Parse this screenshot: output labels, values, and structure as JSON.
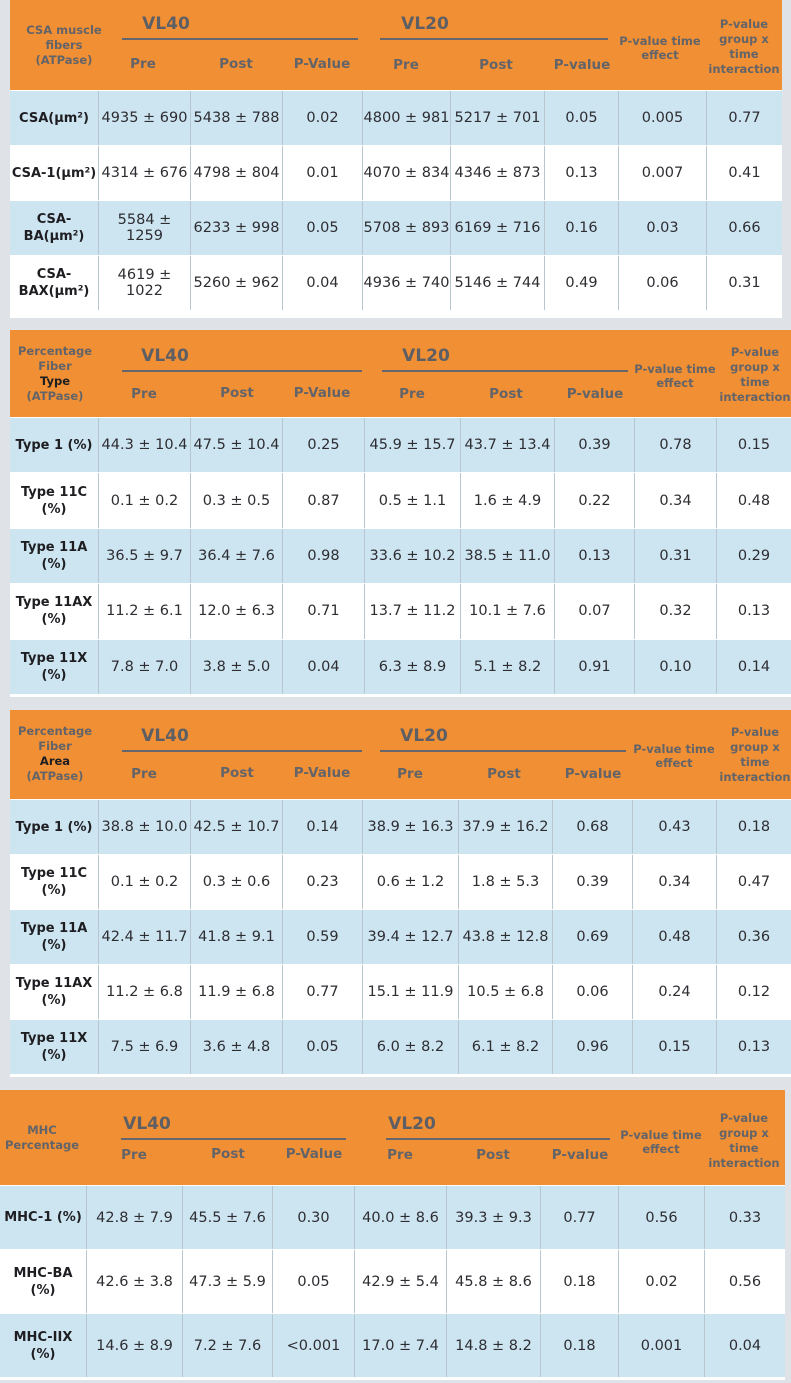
{
  "common": {
    "vl40": "VL40",
    "vl20": "VL20",
    "pre": "Pre",
    "post": "Post",
    "pvalue_vl40": "P-Value",
    "pvalue_vl20": "P-value",
    "pvalue_time": "P-value time effect",
    "pvalue_inter": "P-value group x time interaction"
  },
  "t1": {
    "corner": "CSA muscle fibers (ATPase)",
    "rows": [
      {
        "label": "CSA(µm²)",
        "vl40_pre": "4935 ± 690",
        "vl40_post": "5438 ± 788",
        "vl40_p": "0.02",
        "vl20_pre": "4800 ± 981",
        "vl20_post": "5217 ± 701",
        "vl20_p": "0.05",
        "p_time": "0.005",
        "p_inter": "0.77"
      },
      {
        "label": "CSA-1(µm²)",
        "vl40_pre": "4314 ± 676",
        "vl40_post": "4798 ± 804",
        "vl40_p": "0.01",
        "vl20_pre": "4070 ± 834",
        "vl20_post": "4346 ± 873",
        "vl20_p": "0.13",
        "p_time": "0.007",
        "p_inter": "0.41"
      },
      {
        "label": "CSA-BA(µm²)",
        "vl40_pre": "5584 ± 1259",
        "vl40_post": "6233 ± 998",
        "vl40_p": "0.05",
        "vl20_pre": "5708 ± 893",
        "vl20_post": "6169 ± 716",
        "vl20_p": "0.16",
        "p_time": "0.03",
        "p_inter": "0.66"
      },
      {
        "label": "CSA-BAX(µm²)",
        "vl40_pre": "4619 ± 1022",
        "vl40_post": "5260 ± 962",
        "vl40_p": "0.04",
        "vl20_pre": "4936 ± 740",
        "vl20_post": "5146 ± 744",
        "vl20_p": "0.49",
        "p_time": "0.06",
        "p_inter": "0.31"
      }
    ]
  },
  "t2": {
    "corner_a": "Percentage Fiber",
    "corner_b": "Type",
    "corner_c": "(ATPase)",
    "rows": [
      {
        "label": "Type 1 (%)",
        "vl40_pre": "44.3 ± 10.4",
        "vl40_post": "47.5 ± 10.4",
        "vl40_p": "0.25",
        "vl20_pre": "45.9 ± 15.7",
        "vl20_post": "43.7 ± 13.4",
        "vl20_p": "0.39",
        "p_time": "0.78",
        "p_inter": "0.15"
      },
      {
        "label": "Type 11C (%)",
        "vl40_pre": "0.1 ± 0.2",
        "vl40_post": "0.3 ± 0.5",
        "vl40_p": "0.87",
        "vl20_pre": "0.5 ± 1.1",
        "vl20_post": "1.6 ± 4.9",
        "vl20_p": "0.22",
        "p_time": "0.34",
        "p_inter": "0.48"
      },
      {
        "label": "Type 11A (%)",
        "vl40_pre": "36.5 ± 9.7",
        "vl40_post": "36.4 ± 7.6",
        "vl40_p": "0.98",
        "vl20_pre": "33.6 ± 10.2",
        "vl20_post": "38.5 ± 11.0",
        "vl20_p": "0.13",
        "p_time": "0.31",
        "p_inter": "0.29"
      },
      {
        "label": "Type 11AX (%)",
        "vl40_pre": "11.2 ± 6.1",
        "vl40_post": "12.0 ± 6.3",
        "vl40_p": "0.71",
        "vl20_pre": "13.7 ± 11.2",
        "vl20_post": "10.1 ± 7.6",
        "vl20_p": "0.07",
        "p_time": "0.32",
        "p_inter": "0.13"
      },
      {
        "label": "Type 11X (%)",
        "vl40_pre": "7.8 ± 7.0",
        "vl40_post": "3.8 ± 5.0",
        "vl40_p": "0.04",
        "vl20_pre": "6.3 ± 8.9",
        "vl20_post": "5.1 ± 8.2",
        "vl20_p": "0.91",
        "p_time": "0.10",
        "p_inter": "0.14"
      }
    ]
  },
  "t3": {
    "corner_a": "Percentage Fiber",
    "corner_b": "Area",
    "corner_c": "(ATPase)",
    "rows": [
      {
        "label": "Type 1 (%)",
        "vl40_pre": "38.8 ± 10.0",
        "vl40_post": "42.5 ± 10.7",
        "vl40_p": "0.14",
        "vl20_pre": "38.9 ± 16.3",
        "vl20_post": "37.9 ± 16.2",
        "vl20_p": "0.68",
        "p_time": "0.43",
        "p_inter": "0.18"
      },
      {
        "label": "Type 11C (%)",
        "vl40_pre": "0.1 ± 0.2",
        "vl40_post": "0.3 ± 0.6",
        "vl40_p": "0.23",
        "vl20_pre": "0.6 ± 1.2",
        "vl20_post": "1.8 ± 5.3",
        "vl20_p": "0.39",
        "p_time": "0.34",
        "p_inter": "0.47"
      },
      {
        "label": "Type 11A (%)",
        "vl40_pre": "42.4 ± 11.7",
        "vl40_post": "41.8 ± 9.1",
        "vl40_p": "0.59",
        "vl20_pre": "39.4 ± 12.7",
        "vl20_post": "43.8 ± 12.8",
        "vl20_p": "0.69",
        "p_time": "0.48",
        "p_inter": "0.36"
      },
      {
        "label": "Type 11AX (%)",
        "vl40_pre": "11.2 ± 6.8",
        "vl40_post": "11.9 ± 6.8",
        "vl40_p": "0.77",
        "vl20_pre": "15.1 ± 11.9",
        "vl20_post": "10.5 ± 6.8",
        "vl20_p": "0.06",
        "p_time": "0.24",
        "p_inter": "0.12"
      },
      {
        "label": "Type 11X (%)",
        "vl40_pre": "7.5 ± 6.9",
        "vl40_post": "3.6 ± 4.8",
        "vl40_p": "0.05",
        "vl20_pre": "6.0 ± 8.2",
        "vl20_post": "6.1 ± 8.2",
        "vl20_p": "0.96",
        "p_time": "0.15",
        "p_inter": "0.13"
      }
    ]
  },
  "t4": {
    "corner": "MHC Percentage",
    "rows": [
      {
        "label": "MHC-1 (%)",
        "vl40_pre": "42.8 ± 7.9",
        "vl40_post": "45.5 ± 7.6",
        "vl40_p": "0.30",
        "vl20_pre": "40.0 ± 8.6",
        "vl20_post": "39.3 ± 9.3",
        "vl20_p": "0.77",
        "p_time": "0.56",
        "p_inter": "0.33"
      },
      {
        "label": "MHC-BA (%)",
        "vl40_pre": "42.6 ± 3.8",
        "vl40_post": "47.3 ± 5.9",
        "vl40_p": "0.05",
        "vl20_pre": "42.9 ± 5.4",
        "vl20_post": "45.8 ± 8.6",
        "vl20_p": "0.18",
        "p_time": "0.02",
        "p_inter": "0.56"
      },
      {
        "label": "MHC-IIX (%)",
        "vl40_pre": "14.6 ± 8.9",
        "vl40_post": "7.2 ± 7.6",
        "vl40_p": "<0.001",
        "vl20_pre": "17.0 ± 7.4",
        "vl20_post": "14.8 ± 8.2",
        "vl20_p": "0.18",
        "p_time": "0.001",
        "p_inter": "0.04"
      }
    ]
  }
}
